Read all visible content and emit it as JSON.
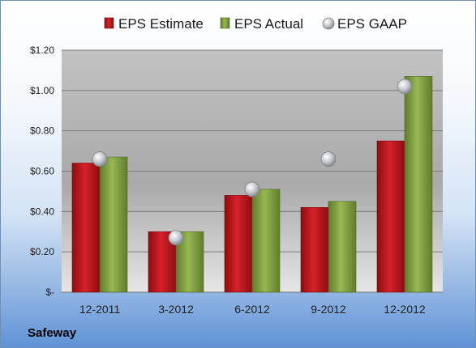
{
  "company": "Safeway",
  "colors": {
    "estimate": "#c8181d",
    "actual": "#86a845",
    "gaap": "#b8bcc2"
  },
  "chart_data": {
    "type": "bar",
    "categories": [
      "12-2011",
      "3-2012",
      "6-2012",
      "9-2012",
      "12-2012"
    ],
    "series": [
      {
        "name": "EPS Estimate",
        "type": "bar",
        "values": [
          0.64,
          0.3,
          0.48,
          0.42,
          0.75
        ]
      },
      {
        "name": "EPS Actual",
        "type": "bar",
        "values": [
          0.67,
          0.3,
          0.51,
          0.45,
          1.07
        ]
      },
      {
        "name": "EPS GAAP",
        "type": "scatter",
        "values": [
          0.66,
          0.27,
          0.51,
          0.66,
          1.02
        ]
      }
    ],
    "ylim": [
      0,
      1.2
    ],
    "yticks": [
      {
        "value": 0,
        "label": "$-"
      },
      {
        "value": 0.2,
        "label": "$0.20"
      },
      {
        "value": 0.4,
        "label": "$0.40"
      },
      {
        "value": 0.6,
        "label": "$0.60"
      },
      {
        "value": 0.8,
        "label": "$0.80"
      },
      {
        "value": 1.0,
        "label": "$1.00"
      },
      {
        "value": 1.2,
        "label": "$1.20"
      }
    ],
    "grid": true,
    "legend_position": "top",
    "title": "",
    "xlabel": "",
    "ylabel": ""
  }
}
